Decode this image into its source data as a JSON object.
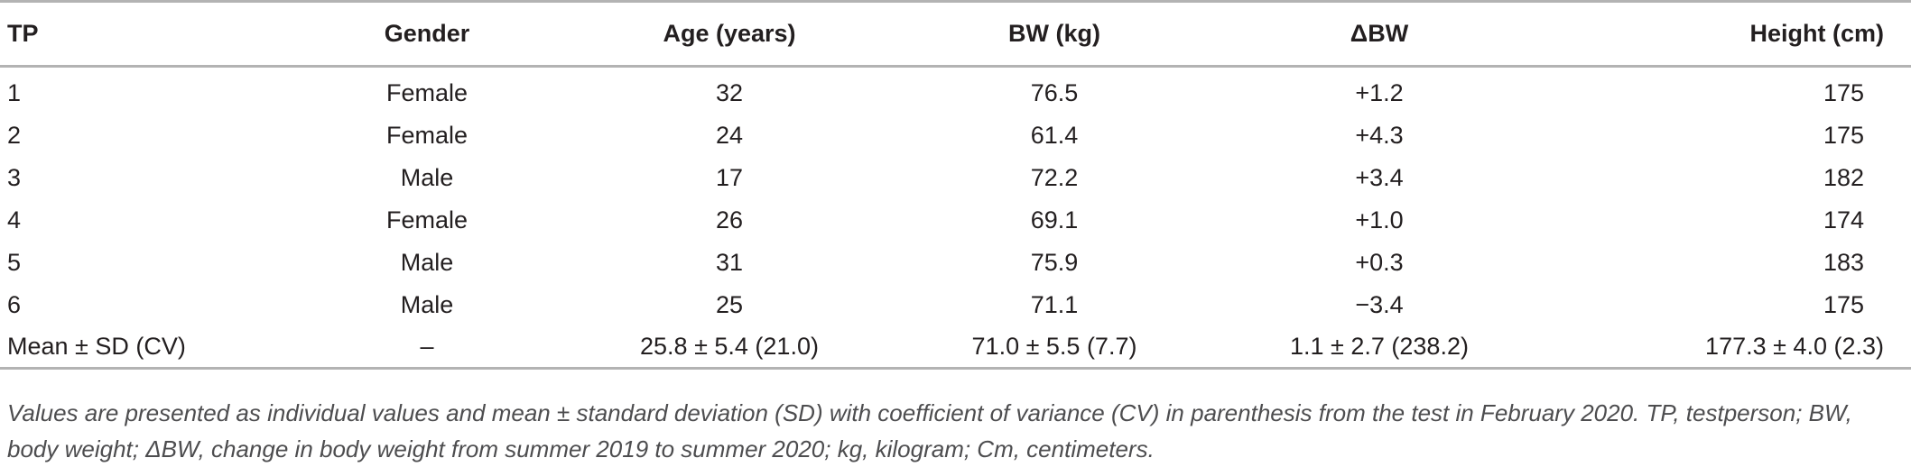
{
  "table": {
    "headers": [
      "TP",
      "Gender",
      "Age (years)",
      "BW (kg)",
      "ΔBW",
      "Height (cm)"
    ],
    "rows": [
      [
        "1",
        "Female",
        "32",
        "76.5",
        "+1.2",
        "175"
      ],
      [
        "2",
        "Female",
        "24",
        "61.4",
        "+4.3",
        "175"
      ],
      [
        "3",
        "Male",
        "17",
        "72.2",
        "+3.4",
        "182"
      ],
      [
        "4",
        "Female",
        "26",
        "69.1",
        "+1.0",
        "174"
      ],
      [
        "5",
        "Male",
        "31",
        "75.9",
        "+0.3",
        "183"
      ],
      [
        "6",
        "Male",
        "25",
        "71.1",
        "−3.4",
        "175"
      ]
    ],
    "summary": [
      "Mean ± SD (CV)",
      "–",
      "25.8 ± 5.4 (21.0)",
      "71.0 ± 5.5 (7.7)",
      "1.1 ± 2.7 (238.2)",
      "177.3 ± 4.0 (2.3)"
    ]
  },
  "footnote": "Values are presented as individual values and mean ± standard deviation (SD) with coefficient of variance (CV) in parenthesis from the test in February 2020. TP, testperson; BW, body weight; ΔBW, change in body weight from summer 2019 to summer 2020; kg, kilogram; Cm, centimeters."
}
